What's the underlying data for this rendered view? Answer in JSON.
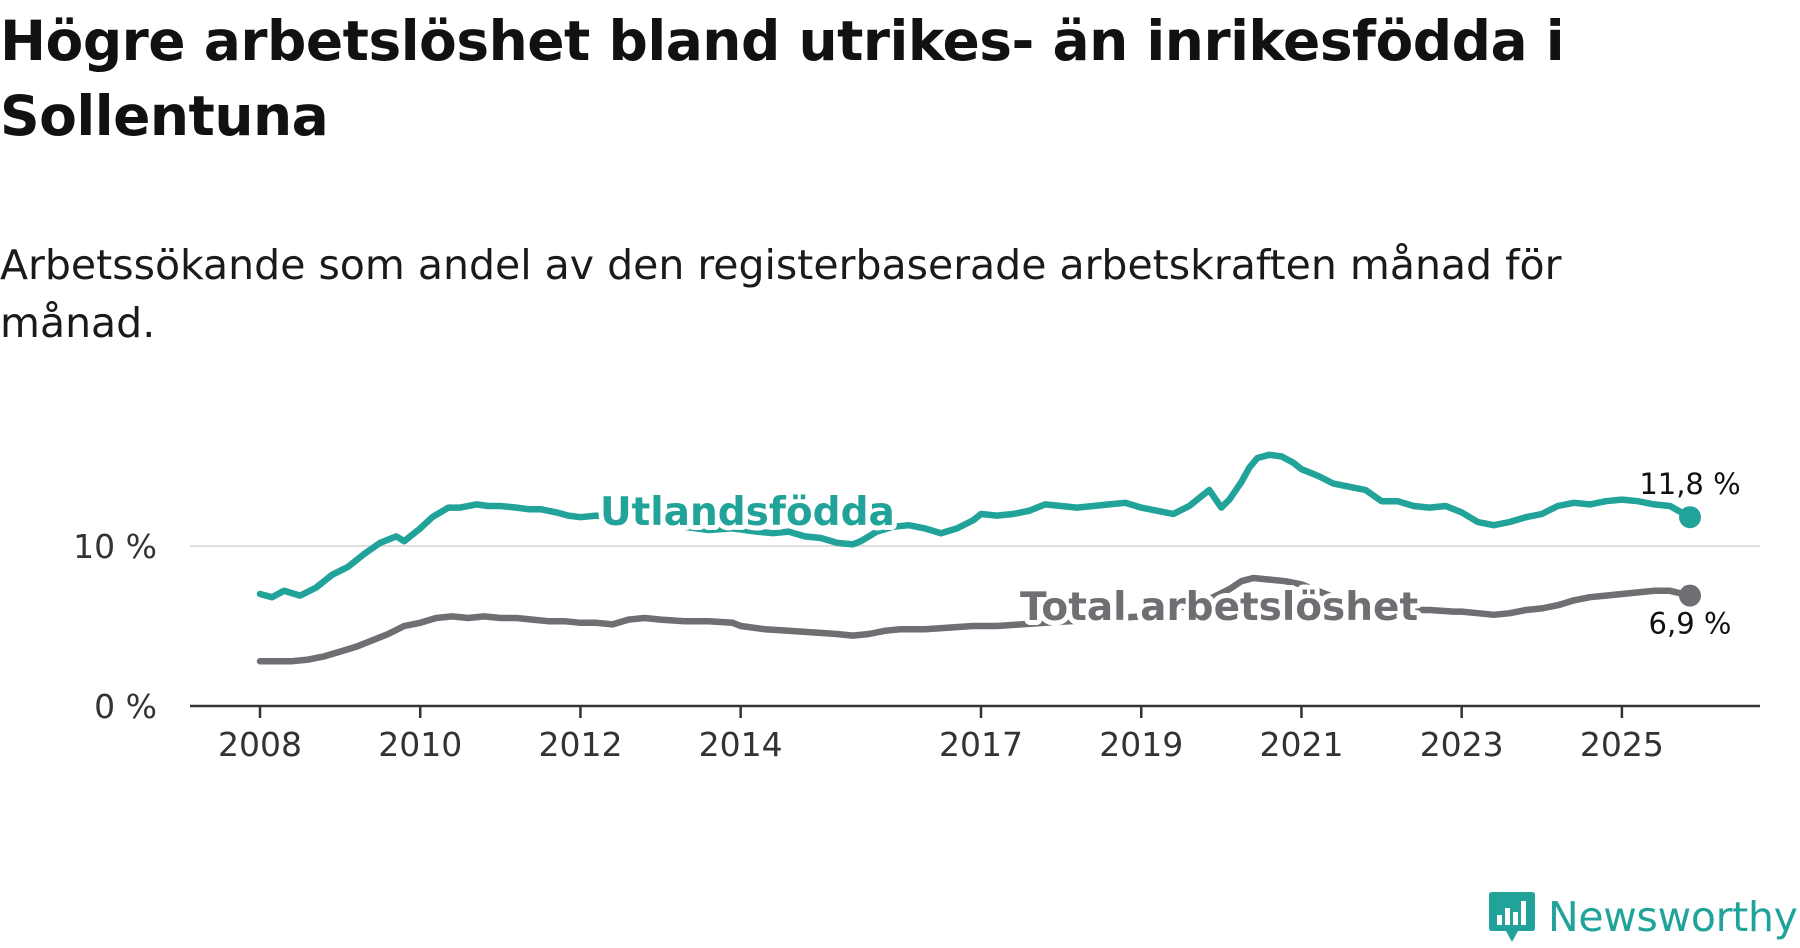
{
  "title": "Högre arbetslöshet bland utrikes- än inrikesfödda i Sollentuna",
  "subtitle": "Arbetssökande som andel av den registerbaserade arbetskraften månad för månad.",
  "brand": {
    "name": "Newsworthy",
    "icon": "newsworthy-logo-icon",
    "color": "#21a39a"
  },
  "chart_data": {
    "type": "line",
    "title": "Högre arbetslöshet bland utrikes- än inrikesfödda i Sollentuna",
    "xlabel": "",
    "ylabel": "",
    "xlim": [
      2008.0,
      2025.85
    ],
    "ylim": [
      0,
      16
    ],
    "grid": "horizontal",
    "x_ticks": [
      2008,
      2010,
      2012,
      2014,
      2017,
      2019,
      2021,
      2023,
      2025
    ],
    "x_tick_labels": [
      "2008",
      "2010",
      "2012",
      "2014",
      "2017",
      "2019",
      "2021",
      "2023",
      "2025"
    ],
    "y_ticks": [
      0,
      10
    ],
    "y_tick_labels": [
      "0 %",
      "10 %"
    ],
    "series": [
      {
        "name": "Utlandsfödda",
        "color": "#21a39a",
        "end_label": "11,8 %",
        "x": [
          2008.0,
          2008.15,
          2008.3,
          2008.5,
          2008.7,
          2008.9,
          2009.1,
          2009.3,
          2009.5,
          2009.7,
          2009.8,
          2010.0,
          2010.15,
          2010.25,
          2010.35,
          2010.5,
          2010.7,
          2010.85,
          2011.0,
          2011.2,
          2011.35,
          2011.5,
          2011.7,
          2011.85,
          2012.0,
          2012.2,
          2012.5,
          2012.8,
          2013.0,
          2013.3,
          2013.6,
          2013.9,
          2014.2,
          2014.4,
          2014.6,
          2014.8,
          2015.0,
          2015.2,
          2015.4,
          2015.5,
          2015.7,
          2015.9,
          2016.1,
          2016.3,
          2016.5,
          2016.7,
          2016.9,
          2017.0,
          2017.2,
          2017.4,
          2017.6,
          2017.8,
          2018.0,
          2018.2,
          2018.4,
          2018.6,
          2018.8,
          2019.0,
          2019.2,
          2019.4,
          2019.6,
          2019.7,
          2019.85,
          2020.0,
          2020.1,
          2020.25,
          2020.35,
          2020.45,
          2020.6,
          2020.75,
          2020.9,
          2021.0,
          2021.2,
          2021.4,
          2021.6,
          2021.8,
          2022.0,
          2022.2,
          2022.4,
          2022.6,
          2022.8,
          2023.0,
          2023.2,
          2023.4,
          2023.6,
          2023.8,
          2024.0,
          2024.2,
          2024.4,
          2024.6,
          2024.8,
          2025.0,
          2025.2,
          2025.4,
          2025.6,
          2025.85
        ],
        "y": [
          7.0,
          6.8,
          7.2,
          6.9,
          7.4,
          8.2,
          8.7,
          9.5,
          10.2,
          10.6,
          10.3,
          11.1,
          11.8,
          12.1,
          12.4,
          12.4,
          12.6,
          12.5,
          12.5,
          12.4,
          12.3,
          12.3,
          12.1,
          11.9,
          11.8,
          11.9,
          11.7,
          11.6,
          11.5,
          11.2,
          11.0,
          11.1,
          10.9,
          10.8,
          10.9,
          10.6,
          10.5,
          10.2,
          10.1,
          10.3,
          10.9,
          11.2,
          11.3,
          11.1,
          10.8,
          11.1,
          11.6,
          12.0,
          11.9,
          12.0,
          12.2,
          12.6,
          12.5,
          12.4,
          12.5,
          12.6,
          12.7,
          12.4,
          12.2,
          12.0,
          12.5,
          12.9,
          13.5,
          12.4,
          12.9,
          14.0,
          14.9,
          15.5,
          15.7,
          15.6,
          15.2,
          14.8,
          14.4,
          13.9,
          13.7,
          13.5,
          12.8,
          12.8,
          12.5,
          12.4,
          12.5,
          12.1,
          11.5,
          11.3,
          11.5,
          11.8,
          12.0,
          12.5,
          12.7,
          12.6,
          12.8,
          12.9,
          12.8,
          12.6,
          12.5,
          11.8
        ]
      },
      {
        "name": "Total arbetslöshet",
        "color": "#6e6e73",
        "end_label": "6,9 %",
        "x": [
          2008.0,
          2008.2,
          2008.4,
          2008.6,
          2008.8,
          2009.0,
          2009.2,
          2009.4,
          2009.6,
          2009.8,
          2010.0,
          2010.2,
          2010.4,
          2010.6,
          2010.8,
          2011.0,
          2011.2,
          2011.4,
          2011.6,
          2011.8,
          2012.0,
          2012.2,
          2012.4,
          2012.6,
          2012.8,
          2013.0,
          2013.3,
          2013.6,
          2013.9,
          2014.0,
          2014.3,
          2014.6,
          2014.9,
          2015.2,
          2015.4,
          2015.6,
          2015.8,
          2016.0,
          2016.3,
          2016.6,
          2016.9,
          2017.2,
          2017.5,
          2017.8,
          2018.1,
          2018.4,
          2018.7,
          2019.0,
          2019.3,
          2019.6,
          2019.9,
          2020.1,
          2020.25,
          2020.4,
          2020.6,
          2020.8,
          2021.0,
          2021.2,
          2021.4,
          2021.6,
          2021.8,
          2022.0,
          2022.3,
          2022.6,
          2022.9,
          2023.0,
          2023.2,
          2023.4,
          2023.6,
          2023.8,
          2024.0,
          2024.2,
          2024.4,
          2024.6,
          2024.8,
          2025.0,
          2025.2,
          2025.4,
          2025.6,
          2025.85
        ],
        "y": [
          2.8,
          2.8,
          2.8,
          2.9,
          3.1,
          3.4,
          3.7,
          4.1,
          4.5,
          5.0,
          5.2,
          5.5,
          5.6,
          5.5,
          5.6,
          5.5,
          5.5,
          5.4,
          5.3,
          5.3,
          5.2,
          5.2,
          5.1,
          5.4,
          5.5,
          5.4,
          5.3,
          5.3,
          5.2,
          5.0,
          4.8,
          4.7,
          4.6,
          4.5,
          4.4,
          4.5,
          4.7,
          4.8,
          4.8,
          4.9,
          5.0,
          5.0,
          5.1,
          5.2,
          5.3,
          5.4,
          5.5,
          5.6,
          5.9,
          6.3,
          6.8,
          7.3,
          7.8,
          8.0,
          7.9,
          7.8,
          7.6,
          7.2,
          6.8,
          6.5,
          6.3,
          6.1,
          6.0,
          6.0,
          5.9,
          5.9,
          5.8,
          5.7,
          5.8,
          6.0,
          6.1,
          6.3,
          6.6,
          6.8,
          6.9,
          7.0,
          7.1,
          7.2,
          7.2,
          6.9
        ]
      }
    ]
  }
}
